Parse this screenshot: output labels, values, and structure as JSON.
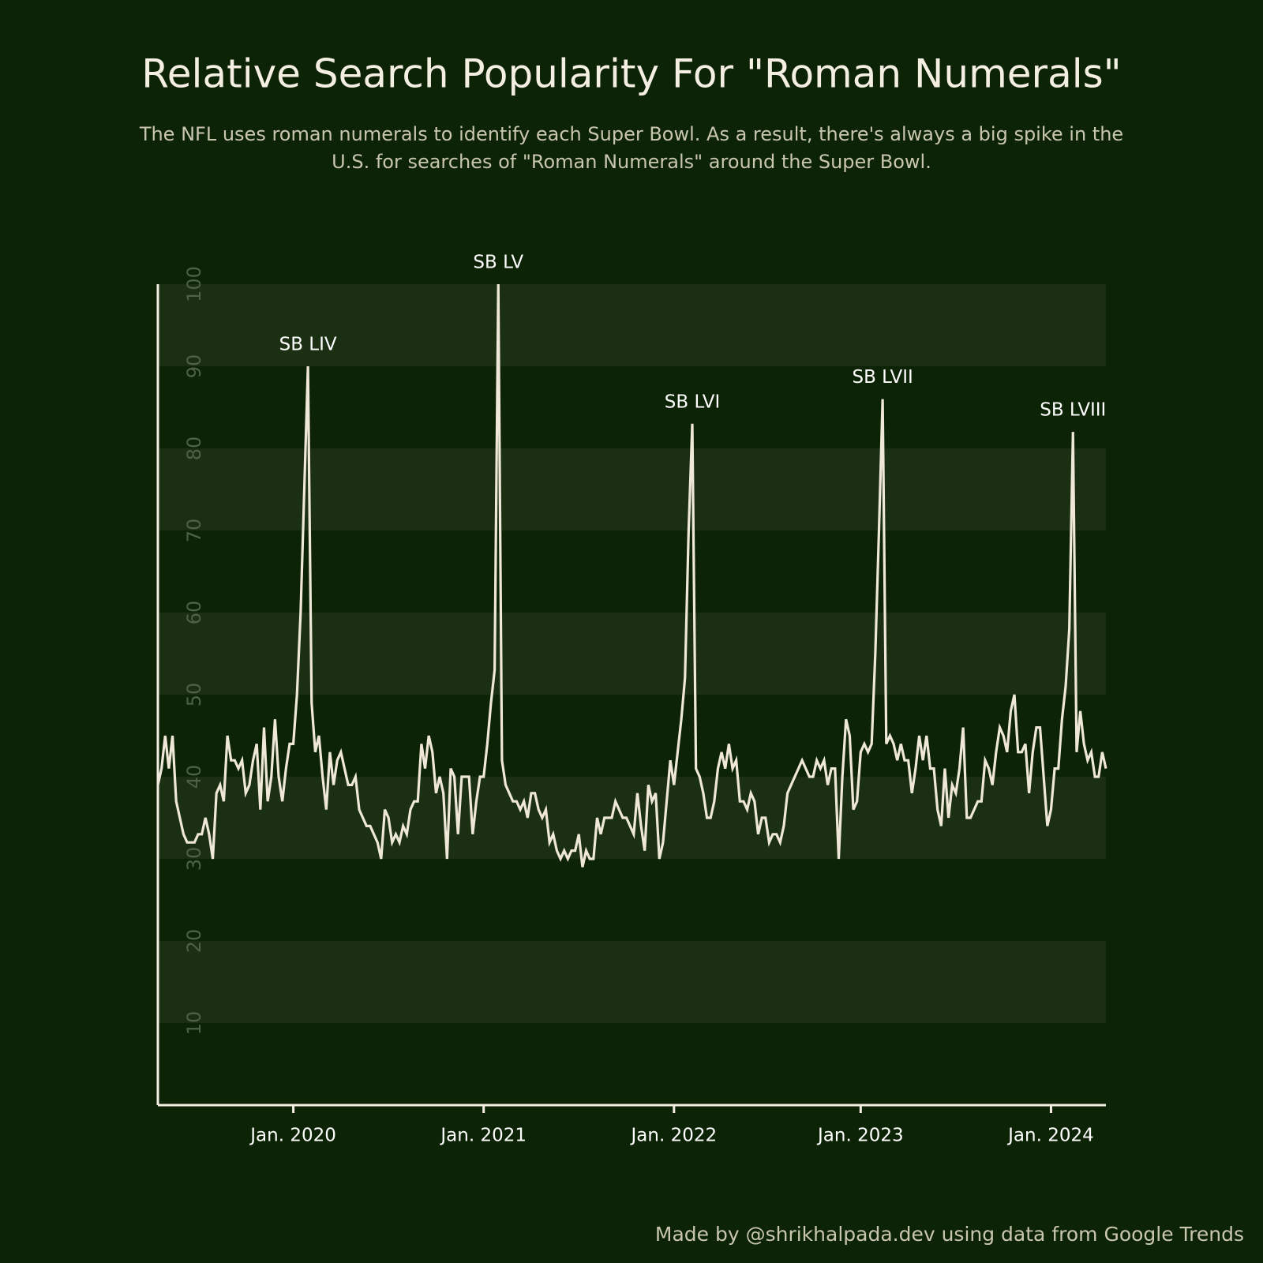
{
  "chart_data": {
    "type": "line",
    "title": "Relative Search Popularity For \"Roman Numerals\"",
    "subtitle": [
      "The NFL uses roman numerals to identify each Super Bowl. As a result, there's always a big spike in the",
      "U.S. for searches of \"Roman Numerals\" around the Super Bowl."
    ],
    "source": "Made by @shrikhalpada.dev using data from Google Trends",
    "annotations": [
      "SB LIV",
      "SB LV",
      "SB LVI",
      "SB LVII",
      "SB LVIII"
    ],
    "color": "#efe8d8",
    "grid": true,
    "ylim": [
      0,
      100
    ],
    "yticks": [
      10,
      20,
      30,
      40,
      50,
      60,
      70,
      80,
      90,
      100
    ],
    "categories": [
      null,
      null,
      null,
      null,
      null,
      null,
      null,
      null,
      null,
      null,
      null,
      null,
      null,
      null,
      null,
      null,
      null,
      null,
      null,
      null,
      null,
      null,
      null,
      null,
      null,
      null,
      null,
      null,
      null,
      null,
      null,
      null,
      null,
      null,
      null,
      null,
      null,
      "Jan. 2020",
      null,
      null,
      null,
      null,
      null,
      null,
      null,
      null,
      null,
      null,
      null,
      null,
      null,
      null,
      null,
      null,
      null,
      null,
      null,
      null,
      null,
      null,
      null,
      null,
      null,
      null,
      null,
      null,
      null,
      null,
      null,
      null,
      null,
      null,
      null,
      null,
      null,
      null,
      null,
      null,
      null,
      null,
      null,
      null,
      null,
      null,
      null,
      null,
      null,
      null,
      null,
      "Jan. 2021",
      null,
      null,
      null,
      null,
      null,
      null,
      null,
      null,
      null,
      null,
      null,
      null,
      null,
      null,
      null,
      null,
      null,
      null,
      null,
      null,
      null,
      null,
      null,
      null,
      null,
      null,
      null,
      null,
      null,
      null,
      null,
      null,
      null,
      null,
      null,
      null,
      null,
      null,
      null,
      null,
      null,
      null,
      null,
      null,
      null,
      null,
      null,
      null,
      null,
      null,
      null,
      "Jan. 2022",
      null,
      null,
      null,
      null,
      null,
      null,
      null,
      null,
      null,
      null,
      null,
      null,
      null,
      null,
      null,
      null,
      null,
      null,
      null,
      null,
      null,
      null,
      null,
      null,
      null,
      null,
      null,
      null,
      null,
      null,
      null,
      null,
      null,
      null,
      null,
      null,
      null,
      null,
      null,
      null,
      null,
      null,
      null,
      null,
      null,
      null,
      null,
      null,
      null,
      null,
      "Jan. 2023",
      null,
      null,
      null,
      null,
      null,
      null,
      null,
      null,
      null,
      null,
      null,
      null,
      null,
      null,
      null,
      null,
      null,
      null,
      null,
      null,
      null,
      null,
      null,
      null,
      null,
      null,
      null,
      null,
      null,
      null,
      null,
      null,
      null,
      null,
      null,
      null,
      null,
      null,
      null,
      null,
      null,
      null,
      null,
      null,
      null,
      null,
      null,
      null,
      null,
      null,
      null,
      "Jan. 2024",
      null,
      null,
      null,
      null,
      null,
      null,
      null,
      null,
      null,
      null,
      null,
      null,
      null,
      null,
      null
    ],
    "values": [
      39,
      41,
      45,
      41,
      45,
      37,
      35,
      33,
      32,
      32,
      32,
      33,
      33,
      35,
      33,
      30,
      38,
      39,
      37,
      45,
      42,
      42,
      41,
      42,
      38,
      39,
      42,
      44,
      36,
      46,
      37,
      40,
      47,
      40,
      37,
      41,
      44,
      44,
      50,
      60,
      75,
      90,
      49,
      43,
      45,
      40,
      36,
      43,
      39,
      42,
      43,
      41,
      39,
      39,
      40,
      36,
      35,
      34,
      34,
      33,
      32,
      30,
      36,
      35,
      32,
      33,
      32,
      34,
      33,
      36,
      37,
      37,
      44,
      41,
      45,
      43,
      38,
      40,
      38,
      30,
      41,
      40,
      33,
      40,
      40,
      40,
      33,
      37,
      40,
      40,
      44,
      49,
      53,
      100,
      42,
      39,
      38,
      37,
      37,
      36,
      37,
      35,
      38,
      38,
      36,
      35,
      36,
      32,
      33,
      31,
      30,
      31,
      30,
      31,
      31,
      33,
      29,
      31,
      30,
      30,
      35,
      33,
      35,
      35,
      35,
      37,
      36,
      35,
      35,
      34,
      33,
      38,
      34,
      31,
      39,
      37,
      38,
      30,
      32,
      37,
      42,
      39,
      43,
      47,
      52,
      70,
      83,
      41,
      40,
      38,
      35,
      35,
      37,
      41,
      43,
      41,
      44,
      41,
      42,
      37,
      37,
      36,
      38,
      37,
      33,
      35,
      35,
      32,
      33,
      33,
      32,
      34,
      38,
      39,
      40,
      41,
      42,
      41,
      40,
      40,
      42,
      41,
      42,
      39,
      41,
      41,
      30,
      40,
      47,
      45,
      36,
      37,
      43,
      44,
      43,
      44,
      55,
      70,
      86,
      44,
      45,
      44,
      42,
      44,
      42,
      42,
      38,
      41,
      45,
      42,
      45,
      41,
      41,
      36,
      34,
      41,
      35,
      39,
      38,
      41,
      46,
      35,
      35,
      36,
      37,
      37,
      42,
      41,
      39,
      43,
      46,
      45,
      43,
      48,
      50,
      43,
      43,
      44,
      38,
      43,
      46,
      46,
      40,
      34,
      36,
      41,
      41,
      47,
      51,
      58,
      82,
      43,
      48,
      44,
      42,
      43,
      40,
      40,
      43,
      41
    ]
  }
}
